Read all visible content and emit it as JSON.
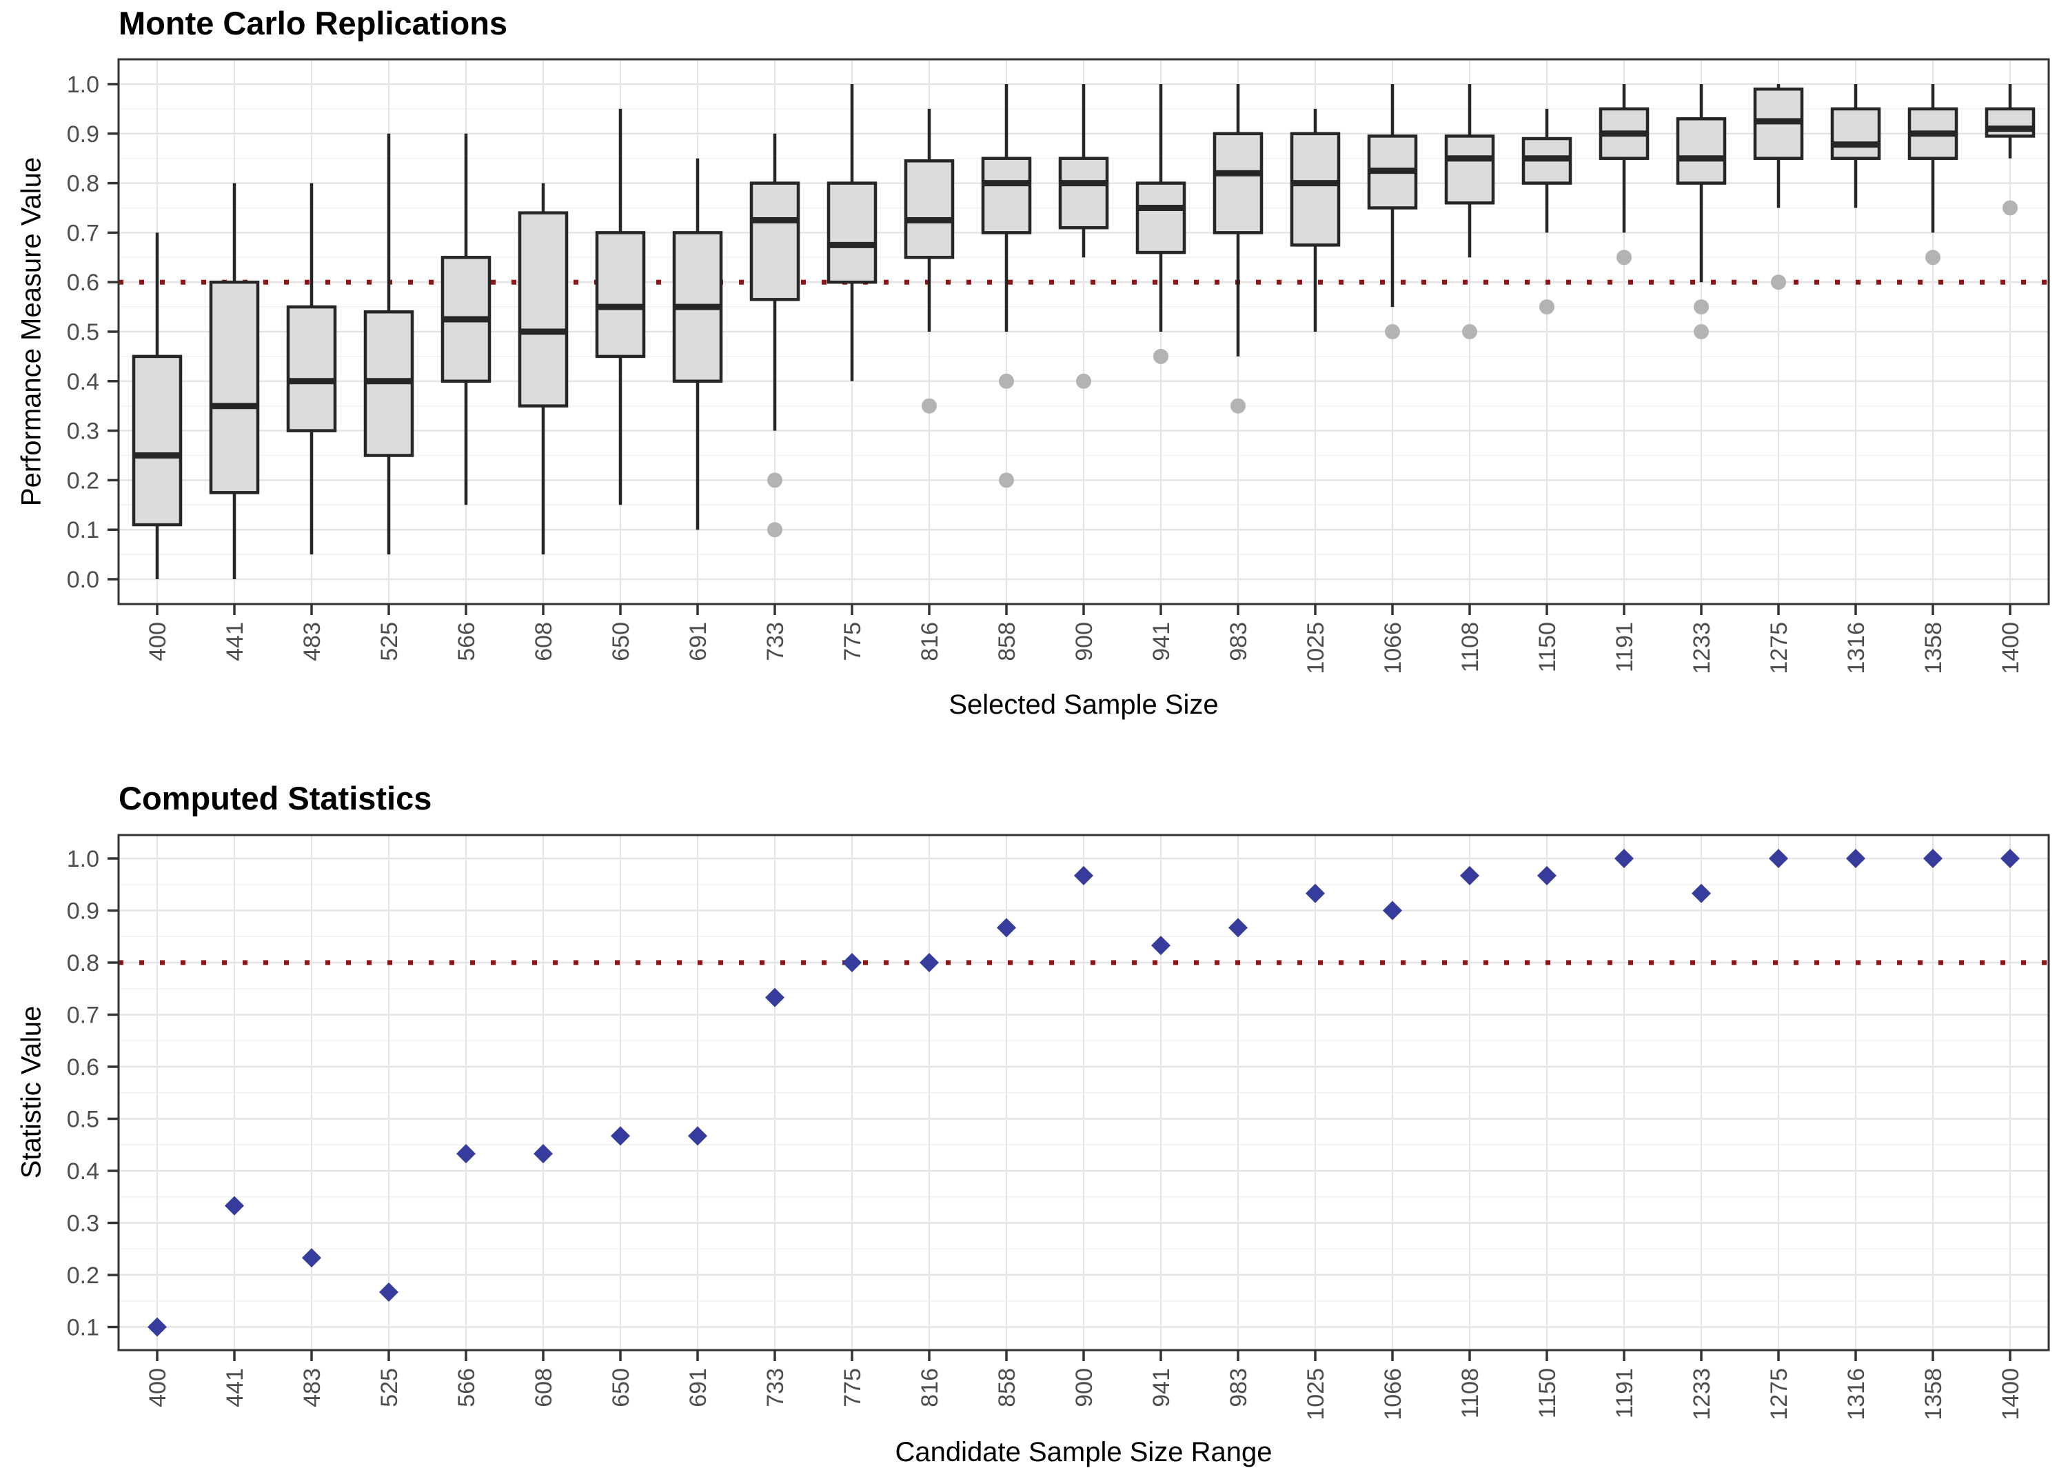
{
  "style": {
    "background": "#ffffff",
    "box_fill": "#DCDCDC",
    "box_stroke": "#262626",
    "outlier_color": "#B3B3B3",
    "diamond_color": "#363C9C",
    "refline_color": "#8C1616",
    "grid_major": "#E4E4E4",
    "grid_minor": "#F2F2F2",
    "panel_border": "#333333",
    "tick_mark": "#333333",
    "tick_text": "#4D4D4D"
  },
  "chart_data": [
    {
      "type": "boxplot",
      "title": "Monte Carlo Replications",
      "xlabel": "Selected Sample Size",
      "ylabel": "Performance Measure Value",
      "ylim": [
        0.0,
        1.0
      ],
      "grid": true,
      "legend_position": "none",
      "reference_line": 0.6,
      "y_tick_labels": [
        "0.0",
        "0.1",
        "0.2",
        "0.3",
        "0.4",
        "0.5",
        "0.6",
        "0.7",
        "0.8",
        "0.9",
        "1.0"
      ],
      "categories": [
        "400",
        "441",
        "483",
        "525",
        "566",
        "608",
        "650",
        "691",
        "733",
        "775",
        "816",
        "858",
        "900",
        "941",
        "983",
        "1025",
        "1066",
        "1108",
        "1150",
        "1191",
        "1233",
        "1275",
        "1316",
        "1358",
        "1400"
      ],
      "boxes": [
        {
          "category": "400",
          "whisker_low": 0.0,
          "q1": 0.11,
          "median": 0.25,
          "q3": 0.45,
          "whisker_high": 0.7,
          "outliers": []
        },
        {
          "category": "441",
          "whisker_low": 0.0,
          "q1": 0.175,
          "median": 0.35,
          "q3": 0.6,
          "whisker_high": 0.8,
          "outliers": []
        },
        {
          "category": "483",
          "whisker_low": 0.05,
          "q1": 0.3,
          "median": 0.4,
          "q3": 0.55,
          "whisker_high": 0.8,
          "outliers": []
        },
        {
          "category": "525",
          "whisker_low": 0.05,
          "q1": 0.25,
          "median": 0.4,
          "q3": 0.54,
          "whisker_high": 0.9,
          "outliers": []
        },
        {
          "category": "566",
          "whisker_low": 0.15,
          "q1": 0.4,
          "median": 0.525,
          "q3": 0.65,
          "whisker_high": 0.9,
          "outliers": []
        },
        {
          "category": "608",
          "whisker_low": 0.05,
          "q1": 0.35,
          "median": 0.5,
          "q3": 0.74,
          "whisker_high": 0.8,
          "outliers": []
        },
        {
          "category": "650",
          "whisker_low": 0.15,
          "q1": 0.45,
          "median": 0.55,
          "q3": 0.7,
          "whisker_high": 0.95,
          "outliers": []
        },
        {
          "category": "691",
          "whisker_low": 0.1,
          "q1": 0.4,
          "median": 0.55,
          "q3": 0.7,
          "whisker_high": 0.85,
          "outliers": []
        },
        {
          "category": "733",
          "whisker_low": 0.3,
          "q1": 0.565,
          "median": 0.725,
          "q3": 0.8,
          "whisker_high": 0.9,
          "outliers": [
            0.2,
            0.1
          ]
        },
        {
          "category": "775",
          "whisker_low": 0.4,
          "q1": 0.6,
          "median": 0.675,
          "q3": 0.8,
          "whisker_high": 1.0,
          "outliers": []
        },
        {
          "category": "816",
          "whisker_low": 0.5,
          "q1": 0.65,
          "median": 0.725,
          "q3": 0.845,
          "whisker_high": 0.95,
          "outliers": [
            0.35
          ]
        },
        {
          "category": "858",
          "whisker_low": 0.5,
          "q1": 0.7,
          "median": 0.8,
          "q3": 0.85,
          "whisker_high": 1.0,
          "outliers": [
            0.4,
            0.2
          ]
        },
        {
          "category": "900",
          "whisker_low": 0.65,
          "q1": 0.71,
          "median": 0.8,
          "q3": 0.85,
          "whisker_high": 1.0,
          "outliers": [
            0.4
          ]
        },
        {
          "category": "941",
          "whisker_low": 0.5,
          "q1": 0.66,
          "median": 0.75,
          "q3": 0.8,
          "whisker_high": 1.0,
          "outliers": [
            0.45
          ]
        },
        {
          "category": "983",
          "whisker_low": 0.45,
          "q1": 0.7,
          "median": 0.82,
          "q3": 0.9,
          "whisker_high": 1.0,
          "outliers": [
            0.35
          ]
        },
        {
          "category": "1025",
          "whisker_low": 0.5,
          "q1": 0.675,
          "median": 0.8,
          "q3": 0.9,
          "whisker_high": 0.95,
          "outliers": []
        },
        {
          "category": "1066",
          "whisker_low": 0.55,
          "q1": 0.75,
          "median": 0.825,
          "q3": 0.895,
          "whisker_high": 1.0,
          "outliers": [
            0.5
          ]
        },
        {
          "category": "1108",
          "whisker_low": 0.65,
          "q1": 0.76,
          "median": 0.85,
          "q3": 0.895,
          "whisker_high": 1.0,
          "outliers": [
            0.5
          ]
        },
        {
          "category": "1150",
          "whisker_low": 0.7,
          "q1": 0.8,
          "median": 0.85,
          "q3": 0.89,
          "whisker_high": 0.95,
          "outliers": [
            0.55
          ]
        },
        {
          "category": "1191",
          "whisker_low": 0.7,
          "q1": 0.85,
          "median": 0.9,
          "q3": 0.95,
          "whisker_high": 1.0,
          "outliers": [
            0.65
          ]
        },
        {
          "category": "1233",
          "whisker_low": 0.6,
          "q1": 0.8,
          "median": 0.85,
          "q3": 0.93,
          "whisker_high": 1.0,
          "outliers": [
            0.55,
            0.5
          ]
        },
        {
          "category": "1275",
          "whisker_low": 0.75,
          "q1": 0.85,
          "median": 0.925,
          "q3": 0.99,
          "whisker_high": 1.0,
          "outliers": [
            0.6
          ]
        },
        {
          "category": "1316",
          "whisker_low": 0.75,
          "q1": 0.85,
          "median": 0.878,
          "q3": 0.95,
          "whisker_high": 1.0,
          "outliers": []
        },
        {
          "category": "1358",
          "whisker_low": 0.7,
          "q1": 0.85,
          "median": 0.9,
          "q3": 0.95,
          "whisker_high": 1.0,
          "outliers": [
            0.65
          ]
        },
        {
          "category": "1400",
          "whisker_low": 0.85,
          "q1": 0.895,
          "median": 0.91,
          "q3": 0.95,
          "whisker_high": 1.0,
          "outliers": [
            0.75
          ]
        }
      ]
    },
    {
      "type": "scatter",
      "title": "Computed Statistics",
      "xlabel": "Candidate Sample Size Range",
      "ylabel": "Statistic Value",
      "ylim": [
        0.1,
        1.0
      ],
      "grid": true,
      "legend_position": "none",
      "reference_line": 0.8,
      "marker": "diamond",
      "y_tick_labels": [
        "0.1",
        "0.2",
        "0.3",
        "0.4",
        "0.5",
        "0.6",
        "0.7",
        "0.8",
        "0.9",
        "1.0"
      ],
      "categories": [
        "400",
        "441",
        "483",
        "525",
        "566",
        "608",
        "650",
        "691",
        "733",
        "775",
        "816",
        "858",
        "900",
        "941",
        "983",
        "1025",
        "1066",
        "1108",
        "1150",
        "1191",
        "1233",
        "1275",
        "1316",
        "1358",
        "1400"
      ],
      "values": [
        0.1,
        0.333,
        0.233,
        0.167,
        0.433,
        0.433,
        0.467,
        0.467,
        0.733,
        0.8,
        0.8,
        0.867,
        0.967,
        0.833,
        0.867,
        0.933,
        0.9,
        0.967,
        0.967,
        1.0,
        0.933,
        1.0,
        1.0,
        1.0,
        1.0
      ]
    }
  ]
}
